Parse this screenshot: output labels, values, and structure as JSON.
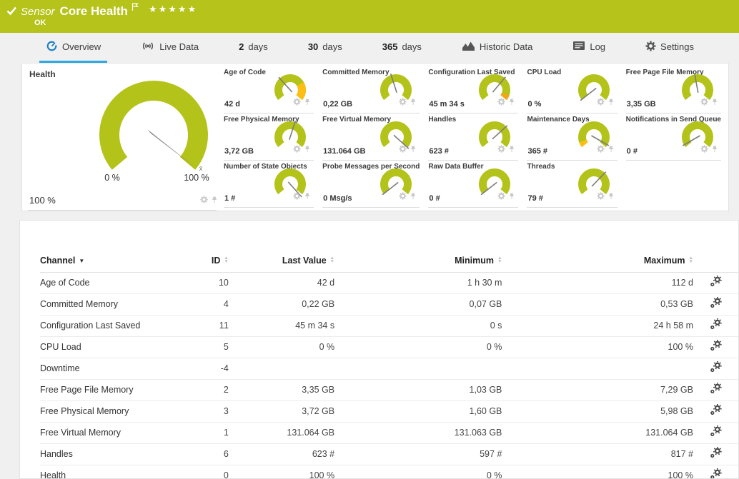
{
  "colors": {
    "header_green": "#b5c31a",
    "gauge_green": "#b4c319",
    "warn_yellow": "#fcbe14",
    "warn_orange": "#f7a219",
    "needle_gray": "#7c7c7c",
    "tab_blue": "#1b7fc4",
    "underline_blue": "#2da8e0",
    "icon_gray": "#555555",
    "control_gray": "#c6c6c6",
    "channel_icon_gray": "#454545"
  },
  "header": {
    "kind_label": "Sensor",
    "title": "Core Health",
    "status": "OK",
    "stars": "★★★★★"
  },
  "tabs": [
    {
      "label": "Overview",
      "icon": "gauge-icon",
      "active": true
    },
    {
      "label": "Live Data",
      "icon": "live-icon",
      "active": false
    },
    {
      "prefix": "2",
      "label": "days",
      "active": false
    },
    {
      "prefix": "30",
      "label": "days",
      "active": false
    },
    {
      "prefix": "365",
      "label": "days",
      "active": false
    },
    {
      "label": "Historic Data",
      "icon": "chart-icon",
      "active": false
    },
    {
      "label": "Log",
      "icon": "log-icon",
      "active": false
    },
    {
      "label": "Settings",
      "icon": "gear-icon",
      "active": false
    }
  ],
  "health_gauge": {
    "title": "Health",
    "value": "100 %",
    "min_label": "0 %",
    "max_label": "100 %",
    "avg_marker": "x̄",
    "needle_deg": 128
  },
  "small_gauges": [
    {
      "title": "Age of Code",
      "value": "42 d",
      "needle_deg": -42,
      "segments": [
        {
          "from": 60,
          "to": 130,
          "color": "#fcbe14"
        }
      ]
    },
    {
      "title": "Committed Memory",
      "value": "0,22 GB",
      "needle_deg": -18
    },
    {
      "title": "Configuration Last Saved",
      "value": "45 m 34 s",
      "needle_deg": 40,
      "segments": [
        {
          "from": 110,
          "to": 130,
          "color": "#f7a219"
        }
      ]
    },
    {
      "title": "CPU Load",
      "value": "0 %",
      "needle_deg": -128
    },
    {
      "title": "Free Page File Memory",
      "value": "3,35 GB",
      "needle_deg": -10
    },
    {
      "title": "Free Physical Memory",
      "value": "3,72 GB",
      "needle_deg": 18
    },
    {
      "title": "Free Virtual Memory",
      "value": "131.064 GB",
      "needle_deg": 132
    },
    {
      "title": "Handles",
      "value": "623 #",
      "needle_deg": 48
    },
    {
      "title": "Maintenance Days",
      "value": "365 #",
      "needle_deg": 120,
      "segments": [
        {
          "from": -130,
          "to": -110,
          "color": "#fcbe14"
        }
      ]
    },
    {
      "title": "Notifications in Send Queue",
      "value": "0 #",
      "needle_deg": -120
    },
    {
      "title": "Number of State Objects",
      "value": "1 #",
      "needle_deg": 138
    },
    {
      "title": "Probe Messages per Second",
      "value": "0 Msg/s",
      "needle_deg": -128
    },
    {
      "title": "Raw Data Buffer",
      "value": "0 #",
      "needle_deg": -128
    },
    {
      "title": "Threads",
      "value": "79 #",
      "needle_deg": 44
    }
  ],
  "table": {
    "columns": [
      {
        "key": "channel",
        "label": "Channel"
      },
      {
        "key": "id",
        "label": "ID"
      },
      {
        "key": "last",
        "label": "Last Value"
      },
      {
        "key": "min",
        "label": "Minimum"
      },
      {
        "key": "max",
        "label": "Maximum"
      }
    ],
    "rows": [
      {
        "channel": "Age of Code",
        "id": "10",
        "last": "42 d",
        "min": "1 h 30 m",
        "max": "112 d"
      },
      {
        "channel": "Committed Memory",
        "id": "4",
        "last": "0,22 GB",
        "min": "0,07 GB",
        "max": "0,53 GB"
      },
      {
        "channel": "Configuration Last Saved",
        "id": "11",
        "last": "45 m 34 s",
        "min": "0 s",
        "max": "24 h 58 m"
      },
      {
        "channel": "CPU Load",
        "id": "5",
        "last": "0 %",
        "min": "0 %",
        "max": "100 %"
      },
      {
        "channel": "Downtime",
        "id": "-4",
        "last": "",
        "min": "",
        "max": ""
      },
      {
        "channel": "Free Page File Memory",
        "id": "2",
        "last": "3,35 GB",
        "min": "1,03 GB",
        "max": "7,29 GB"
      },
      {
        "channel": "Free Physical Memory",
        "id": "3",
        "last": "3,72 GB",
        "min": "1,60 GB",
        "max": "5,98 GB"
      },
      {
        "channel": "Free Virtual Memory",
        "id": "1",
        "last": "131.064 GB",
        "min": "131.063 GB",
        "max": "131.064 GB"
      },
      {
        "channel": "Handles",
        "id": "6",
        "last": "623 #",
        "min": "597 #",
        "max": "817 #"
      },
      {
        "channel": "Health",
        "id": "0",
        "last": "100 %",
        "min": "0 %",
        "max": "100 %"
      }
    ]
  }
}
